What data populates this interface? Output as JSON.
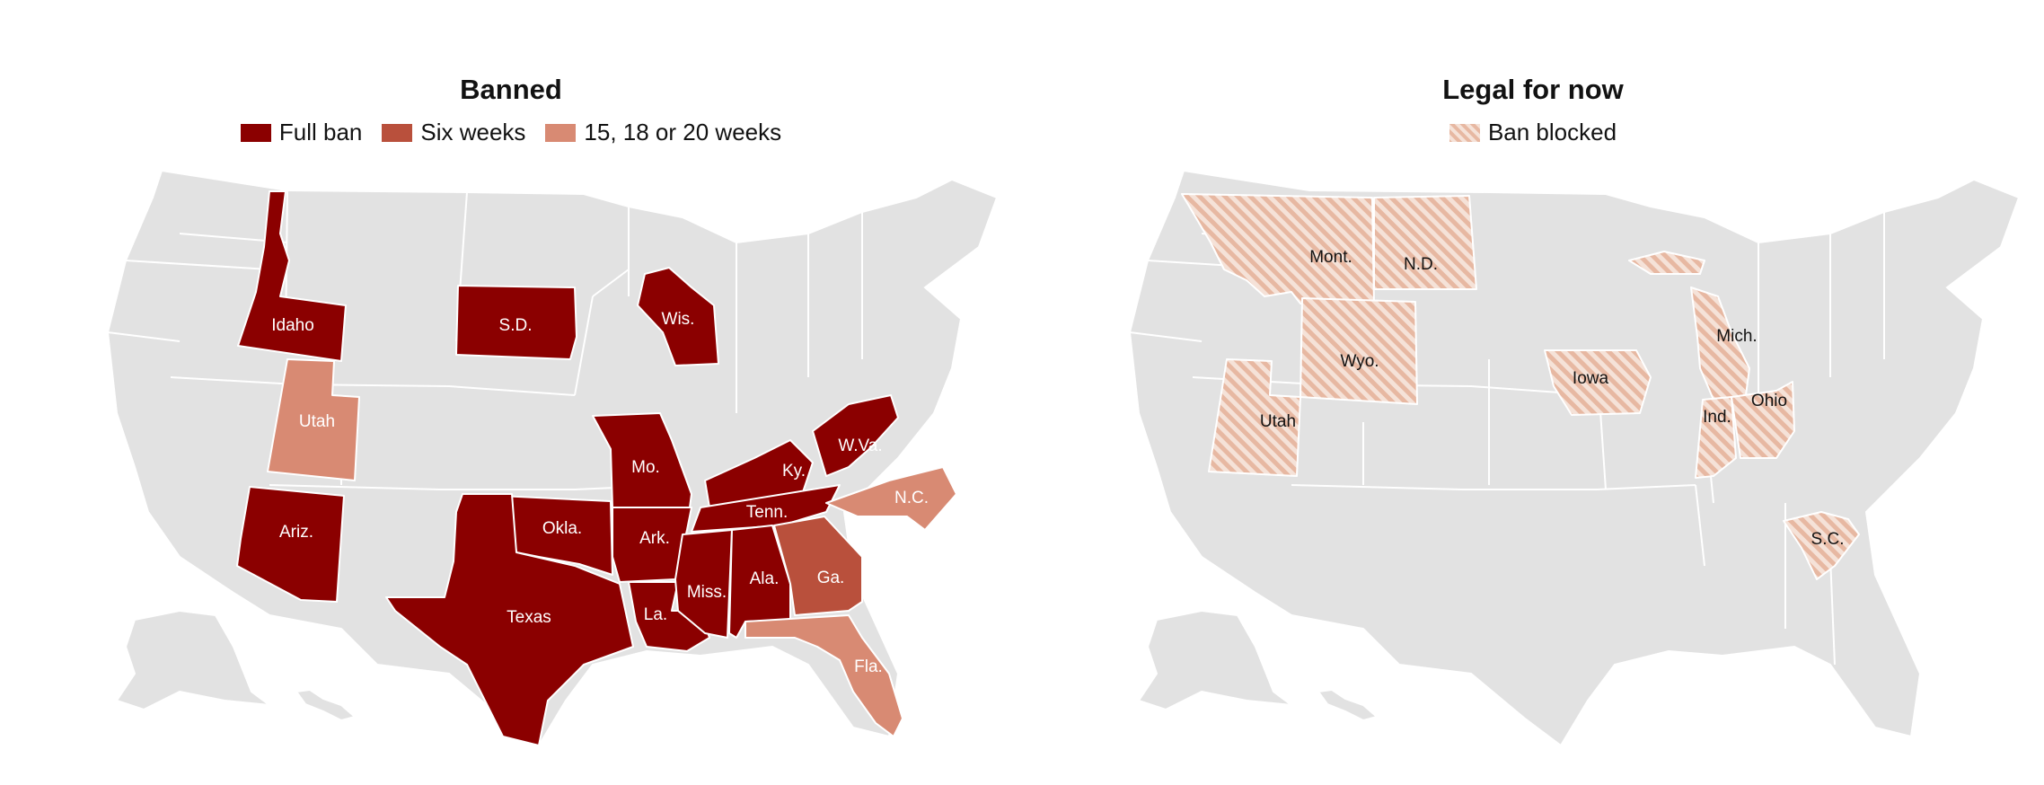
{
  "colors": {
    "full_ban": "#8b0000",
    "six_weeks": "#b9503c",
    "later_limit": "#d88a73",
    "ban_blocked_stripe": "#e7b8a2",
    "no_data": "#e2e2e2"
  },
  "left_map": {
    "title": "Banned",
    "legend": [
      {
        "label": "Full ban",
        "color": "#8b0000"
      },
      {
        "label": "Six weeks",
        "color": "#b9503c"
      },
      {
        "label": "15, 18 or 20 weeks",
        "color": "#d88a73"
      }
    ],
    "states": {
      "idaho": "Idaho",
      "sd": "S.D.",
      "wis": "Wis.",
      "utah": "Utah",
      "mo": "Mo.",
      "ky": "Ky.",
      "wva": "W.Va.",
      "nc": "N.C.",
      "ariz": "Ariz.",
      "okla": "Okla.",
      "ark": "Ark.",
      "tenn": "Tenn.",
      "ga": "Ga.",
      "texas": "Texas",
      "la": "La.",
      "miss": "Miss.",
      "ala": "Ala.",
      "fla": "Fla."
    }
  },
  "right_map": {
    "title": "Legal for now",
    "legend": [
      {
        "label": "Ban blocked",
        "color": "#e7b8a2",
        "pattern": "diagonal-stripes"
      }
    ],
    "states": {
      "mont": "Mont.",
      "nd": "N.D.",
      "wyo": "Wyo.",
      "utah": "Utah",
      "iowa": "Iowa",
      "mich": "Mich.",
      "ind": "Ind.",
      "ohio": "Ohio",
      "sc": "S.C."
    }
  }
}
